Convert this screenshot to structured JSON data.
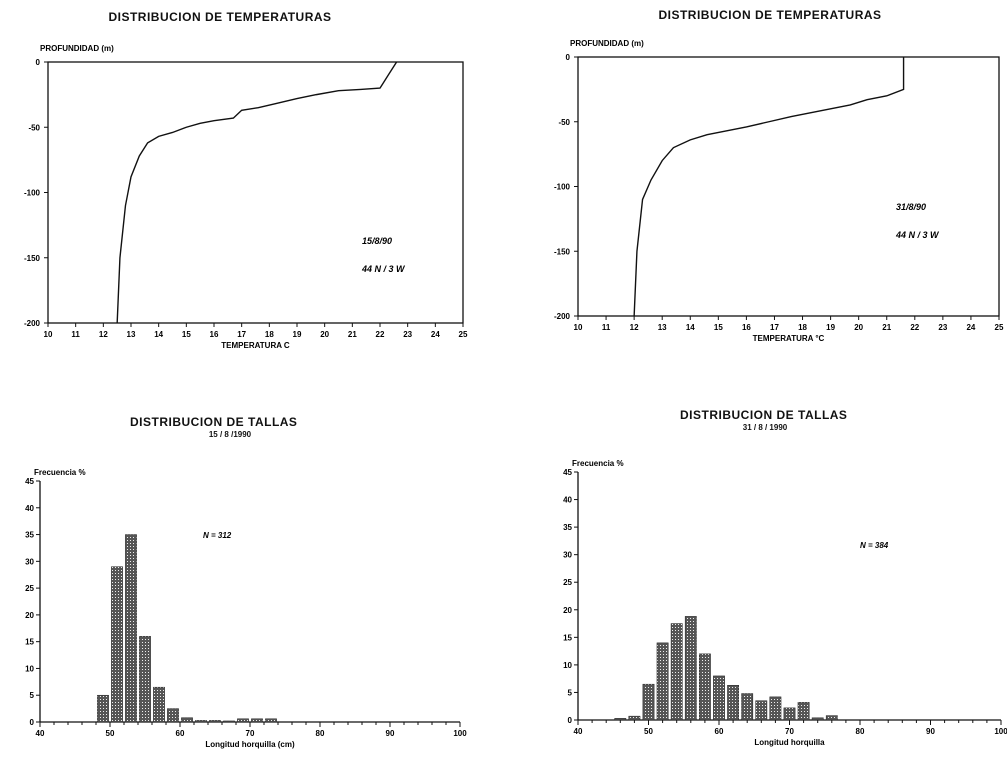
{
  "chart_data": [
    {
      "type": "line",
      "title": "DISTRIBUCION DE TEMPERATURAS",
      "ylabel": "PROFUNDIDAD (m)",
      "xlabel": "TEMPERATURA C",
      "x_ticks": [
        "10",
        "11",
        "12",
        "13",
        "14",
        "15",
        "16",
        "17",
        "18",
        "19",
        "20",
        "21",
        "22",
        "23",
        "24",
        "25"
      ],
      "y_ticks": [
        "0",
        "-50",
        "-100",
        "-150",
        "-200"
      ],
      "xlim": [
        10,
        25
      ],
      "ylim": [
        -200,
        0
      ],
      "annotations": [
        "15/8/90",
        "44 N / 3 W"
      ],
      "series": [
        {
          "x": [
            12.5,
            12.6,
            12.8,
            13.0,
            13.3,
            13.6,
            14.0,
            14.5,
            15.0,
            15.5,
            16.0,
            16.7,
            17.0,
            17.6,
            18.2,
            19.0,
            19.7,
            20.5,
            21.3,
            22.0,
            22.3,
            22.6
          ],
          "y": [
            -200,
            -150,
            -110,
            -88,
            -72,
            -62,
            -57,
            -54,
            -50,
            -47,
            -45,
            -43,
            -37,
            -35,
            -32,
            -28,
            -25,
            -22,
            -21,
            -20,
            -10,
            0
          ]
        }
      ]
    },
    {
      "type": "line",
      "title": "DISTRIBUCION DE TEMPERATURAS",
      "ylabel": "PROFUNDIDAD (m)",
      "xlabel": "TEMPERATURA °C",
      "x_ticks": [
        "10",
        "11",
        "12",
        "13",
        "14",
        "15",
        "16",
        "17",
        "18",
        "19",
        "20",
        "21",
        "22",
        "23",
        "24",
        "25"
      ],
      "y_ticks": [
        "0",
        "-50",
        "-100",
        "-150",
        "-200"
      ],
      "xlim": [
        10,
        25
      ],
      "ylim": [
        -200,
        0
      ],
      "annotations": [
        "31/8/90",
        "44 N / 3 W"
      ],
      "series": [
        {
          "x": [
            12.0,
            12.1,
            12.3,
            12.6,
            13.0,
            13.4,
            14.0,
            14.6,
            15.3,
            16.0,
            16.8,
            17.6,
            18.3,
            19.0,
            19.7,
            20.3,
            21.0,
            21.6,
            21.6
          ],
          "y": [
            -200,
            -150,
            -110,
            -95,
            -80,
            -70,
            -64,
            -60,
            -57,
            -54,
            -50,
            -46,
            -43,
            -40,
            -37,
            -33,
            -30,
            -25,
            0
          ]
        }
      ]
    },
    {
      "type": "bar",
      "title": "DISTRIBUCION DE TALLAS",
      "subtitle": "15 / 8 /1990",
      "ylabel": "Frecuencia %",
      "xlabel": "Longitud horquilla (cm)",
      "x_ticks": [
        "40",
        "50",
        "60",
        "70",
        "80",
        "90",
        "100"
      ],
      "y_ticks": [
        "0",
        "5",
        "10",
        "15",
        "20",
        "25",
        "30",
        "35",
        "40",
        "45"
      ],
      "xlim": [
        40,
        100
      ],
      "ylim": [
        0,
        45
      ],
      "annotations": [
        "N = 312"
      ],
      "x": [
        49,
        51,
        53,
        55,
        57,
        59,
        61,
        63,
        65,
        67,
        69,
        71,
        73
      ],
      "values": [
        5,
        29,
        35,
        16,
        6.5,
        2.5,
        0.8,
        0.3,
        0.3,
        0.2,
        0.6,
        0.6,
        0.6
      ]
    },
    {
      "type": "bar",
      "title": "DISTRIBUCION DE TALLAS",
      "subtitle": "31 / 8 / 1990",
      "ylabel": "Frecuencia %",
      "xlabel": "Longitud horquilla",
      "x_ticks": [
        "40",
        "50",
        "60",
        "70",
        "80",
        "90",
        "100"
      ],
      "y_ticks": [
        "0",
        "5",
        "10",
        "15",
        "20",
        "25",
        "30",
        "35",
        "40",
        "45"
      ],
      "xlim": [
        40,
        100
      ],
      "ylim": [
        0,
        45
      ],
      "annotations": [
        "N = 384"
      ],
      "x": [
        46,
        48,
        50,
        52,
        54,
        56,
        58,
        60,
        62,
        64,
        66,
        68,
        70,
        72,
        74,
        76
      ],
      "values": [
        0.3,
        0.7,
        6.5,
        14,
        17.5,
        18.8,
        12,
        8,
        6.3,
        4.8,
        3.5,
        4.2,
        2.2,
        3.2,
        0.4,
        0.8
      ]
    }
  ]
}
